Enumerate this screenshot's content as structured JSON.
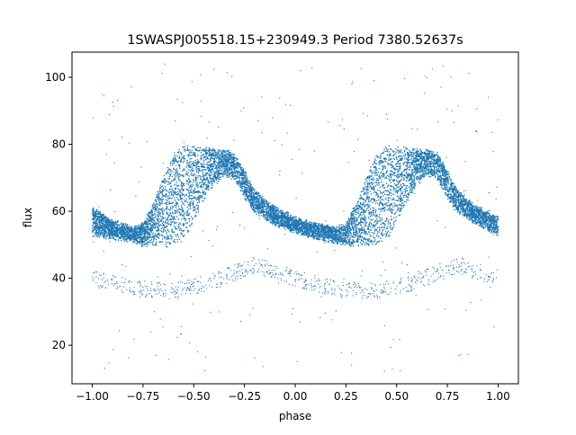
{
  "chart_data": {
    "type": "scatter",
    "title": "1SWASPJ005518.15+230949.3 Period 7380.52637s",
    "xlabel": "phase",
    "ylabel": "flux",
    "xlim": [
      -1.1,
      1.1
    ],
    "ylim": [
      8.5,
      107.5
    ],
    "xticks": [
      -1.0,
      -0.75,
      -0.5,
      -0.25,
      0.0,
      0.25,
      0.5,
      0.75,
      1.0
    ],
    "xtick_labels": [
      "−1.00",
      "−0.75",
      "−0.50",
      "−0.25",
      "0.00",
      "0.25",
      "0.50",
      "0.75",
      "1.00"
    ],
    "yticks": [
      20,
      40,
      60,
      80,
      100
    ],
    "ytick_labels": [
      "20",
      "40",
      "60",
      "80",
      "100"
    ],
    "grid": false,
    "marker_color": "#1f77b4",
    "series": [
      {
        "name": "",
        "profile_x": [
          -1.0,
          -0.9,
          -0.8,
          -0.75,
          -0.7,
          -0.65,
          -0.6,
          -0.55,
          -0.5,
          -0.45,
          -0.4,
          -0.35,
          -0.3,
          -0.25,
          -0.2,
          -0.1,
          0.0,
          0.1,
          0.2,
          0.25,
          0.3,
          0.35,
          0.4,
          0.45,
          0.5,
          0.55,
          0.6,
          0.65,
          0.7,
          0.75,
          0.8,
          0.9,
          1.0
        ],
        "profile_y_upper": [
          61,
          57,
          55,
          56,
          62,
          70,
          77,
          79,
          79,
          79,
          78,
          78,
          77,
          72,
          66,
          61,
          58,
          56,
          55,
          56,
          62,
          70,
          77,
          79,
          79,
          79,
          78,
          78,
          77,
          72,
          66,
          61,
          58
        ],
        "profile_y_lower": [
          53,
          52,
          51,
          50,
          50,
          50,
          50,
          51,
          57,
          63,
          68,
          71,
          70,
          64,
          60,
          56,
          54,
          52,
          51,
          50,
          50,
          50,
          50,
          51,
          57,
          63,
          68,
          71,
          70,
          64,
          60,
          56,
          53
        ],
        "faint_branch_x": [
          -1.0,
          -0.8,
          -0.6,
          -0.4,
          -0.2,
          0.0,
          0.2,
          0.4,
          0.6,
          0.8,
          1.0
        ],
        "faint_branch_y": [
          40,
          37,
          36,
          39,
          44,
          40,
          37,
          36,
          39,
          44,
          40
        ],
        "n_points": 9000
      }
    ]
  }
}
